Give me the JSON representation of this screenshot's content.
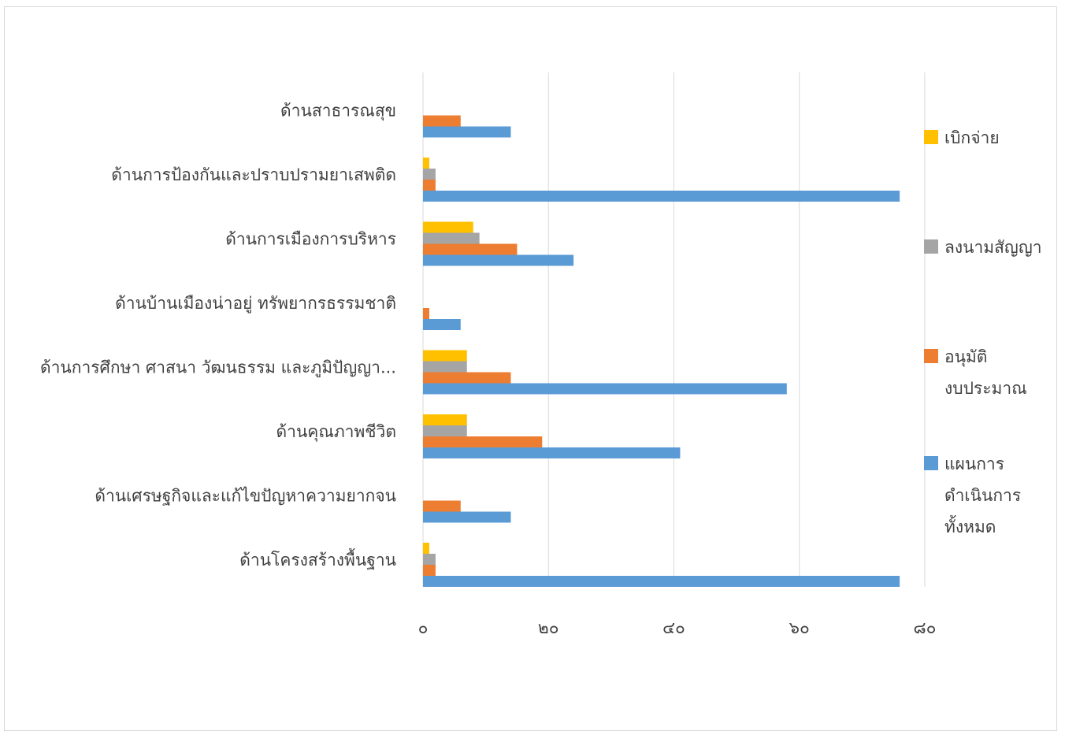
{
  "chart_data": {
    "type": "bar",
    "orientation": "horizontal",
    "title": "",
    "xlabel": "",
    "ylabel": "",
    "xlim": [
      0,
      80
    ],
    "x_ticks": [
      0,
      20,
      40,
      60,
      80
    ],
    "x_tick_labels": [
      "๐",
      "๒๐",
      "๔๐",
      "๖๐",
      "๘๐"
    ],
    "grid": "vertical",
    "legend_position": "right",
    "categories": [
      "ด้านสาธารณสุข",
      "ด้านการป้องกันและปราบปรามยาเสพติด",
      "ด้านการเมืองการบริหาร",
      "ด้านบ้านเมืองน่าอยู่ ทรัพยากรธรรมชาติ",
      "ด้านการศึกษา ศาสนา วัฒนธรรม และภูมิปัญญา...",
      "ด้านคุณภาพชีวิต",
      "ด้านเศรษฐกิจและแก้ไขปัญหาความยากจน",
      "ด้านโครงสร้างพื้นฐาน"
    ],
    "series": [
      {
        "name": "เบิกจ่าย",
        "legend_lines": [
          "เบิกจ่าย"
        ],
        "color": "#FFC000",
        "values": [
          0,
          1,
          8,
          0,
          7,
          7,
          0,
          1
        ]
      },
      {
        "name": "ลงนามสัญญา",
        "legend_lines": [
          "ลงนามสัญญา"
        ],
        "color": "#A5A5A5",
        "values": [
          0,
          2,
          9,
          0,
          7,
          7,
          0,
          2
        ]
      },
      {
        "name": "อนุมัติ งบประมาณ",
        "legend_lines": [
          "อนุมัติ",
          "งบประมาณ"
        ],
        "color": "#ED7D31",
        "values": [
          6,
          2,
          15,
          1,
          14,
          19,
          6,
          2
        ]
      },
      {
        "name": "แผนการ ดำเนินการ ทั้งหมด",
        "legend_lines": [
          "แผนการ",
          "ดำเนินการ",
          "ทั้งหมด"
        ],
        "color": "#5B9BD5",
        "values": [
          14,
          76,
          24,
          6,
          58,
          41,
          14,
          76
        ]
      }
    ]
  }
}
